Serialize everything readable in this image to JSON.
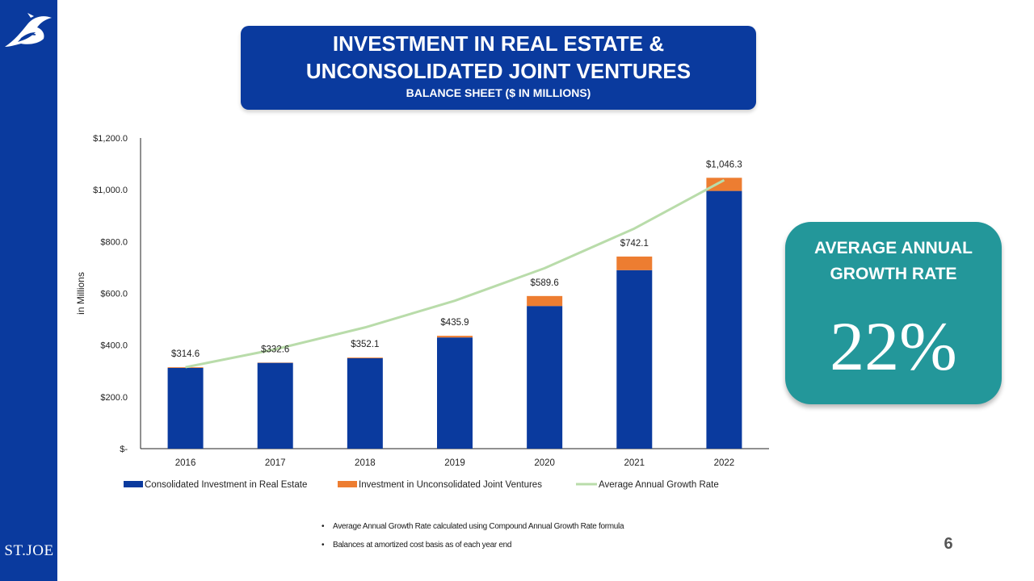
{
  "slide": {
    "title_line1": "INVESTMENT IN REAL ESTATE &",
    "title_line2": "UNCONSOLIDATED JOINT VENTURES",
    "subtitle": "BALANCE SHEET ($ IN MILLIONS)",
    "brand": "ST.JOE",
    "page_number": "6",
    "accent_color": "#0a3a9e",
    "logo_icon": "bird-logo-icon"
  },
  "growth": {
    "label": "AVERAGE ANNUAL GROWTH RATE",
    "value": "22%",
    "color": "#23979a"
  },
  "notes": [
    "Average Annual Growth Rate calculated using Compound Annual Growth Rate formula",
    "Balances at amortized cost basis as of each year end"
  ],
  "chart_data": {
    "type": "bar",
    "stacked": true,
    "categories": [
      "2016",
      "2017",
      "2018",
      "2019",
      "2020",
      "2021",
      "2022"
    ],
    "series": [
      {
        "name": "Consolidated Investment in Real Estate",
        "type": "bar",
        "color": "#0a3a9e",
        "values": [
          312.0,
          331.5,
          349.5,
          429.5,
          551.0,
          689.5,
          995.5
        ]
      },
      {
        "name": "Investment in Unconsolidated Joint Ventures",
        "type": "bar",
        "color": "#ed7d31",
        "values": [
          2.6,
          1.1,
          2.6,
          6.4,
          38.6,
          52.6,
          50.8
        ]
      },
      {
        "name": "Average Annual Growth Rate",
        "type": "line",
        "color": "#b9dcaa",
        "values": [
          314.6,
          383.8,
          468.3,
          571.3,
          697.0,
          850.3,
          1037.4
        ]
      }
    ],
    "totals": [
      314.6,
      332.6,
      352.1,
      435.9,
      589.6,
      742.1,
      1046.3
    ],
    "total_labels": [
      "$314.6",
      "$332.6",
      "$352.1",
      "$435.9",
      "$589.6",
      "$742.1",
      "$1,046.3"
    ],
    "ylabel": "in Millions",
    "ylim": [
      0,
      1200
    ],
    "yticks": [
      0,
      200,
      400,
      600,
      800,
      1000,
      1200
    ],
    "ytick_labels": [
      "$-",
      "$200.0",
      "$400.0",
      "$600.0",
      "$800.0",
      "$1,000.0",
      "$1,200.0"
    ],
    "grid": false,
    "legend": "bottom"
  }
}
